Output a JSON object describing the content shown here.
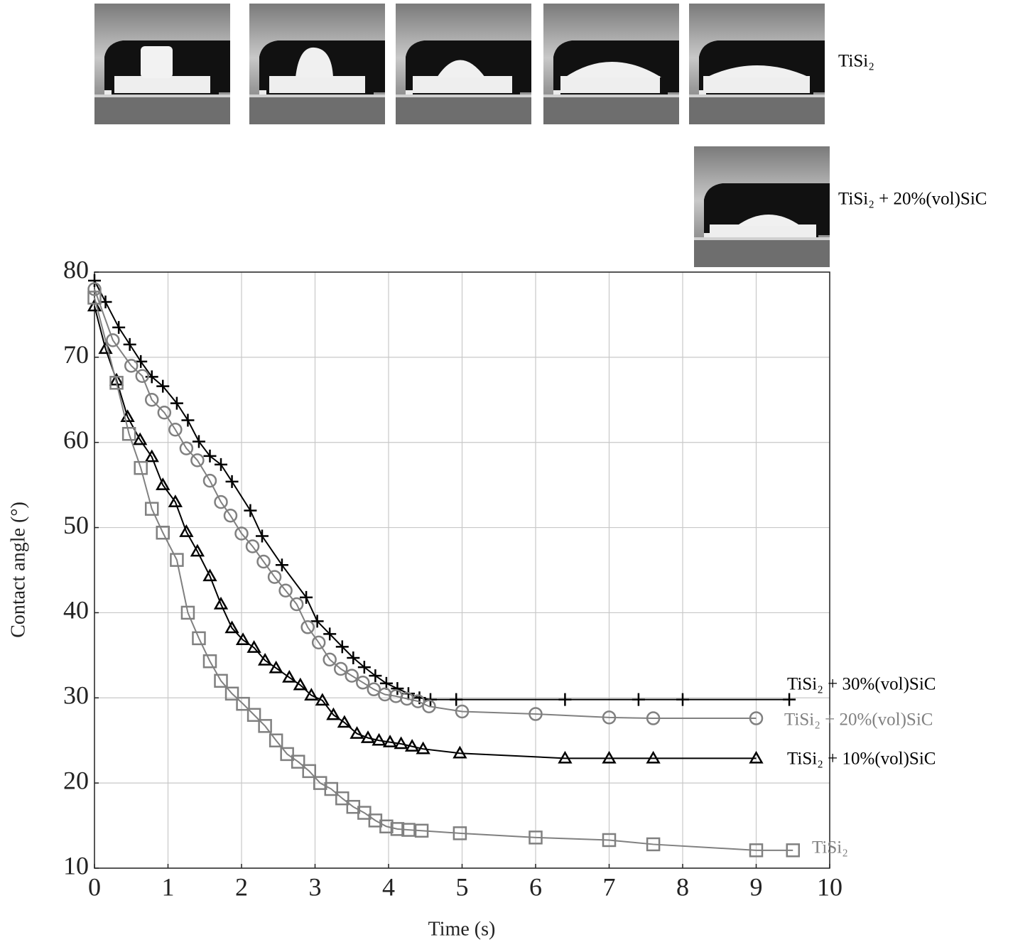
{
  "chart_data": {
    "type": "line",
    "xlabel": "Time (s)",
    "ylabel": "Contact angle (°)",
    "xlim": [
      0,
      10
    ],
    "ylim": [
      10,
      80
    ],
    "xticks": [
      0,
      1,
      2,
      3,
      4,
      5,
      6,
      7,
      8,
      9,
      10
    ],
    "yticks": [
      10,
      20,
      30,
      40,
      50,
      60,
      70,
      80
    ],
    "grid": true,
    "photo_labels": [
      "TiSi₂",
      "TiSi₂ + 20%(vol)SiC"
    ],
    "series": [
      {
        "name": "TiSi₂ + 30%(vol)SiC",
        "color": "#000000",
        "marker": "plus",
        "x": [
          0,
          0.15,
          0.33,
          0.48,
          0.63,
          0.78,
          0.93,
          1.12,
          1.27,
          1.42,
          1.57,
          1.72,
          1.87,
          2.12,
          2.28,
          2.55,
          2.88,
          3.03,
          3.2,
          3.37,
          3.52,
          3.67,
          3.82,
          3.97,
          4.12,
          4.27,
          4.42,
          4.57,
          4.92,
          6.4,
          7.4,
          8,
          9.45
        ],
        "values": [
          79,
          76.5,
          73.5,
          71.5,
          69.5,
          67.7,
          66.6,
          64.6,
          62.6,
          60.1,
          58.4,
          57.4,
          55.4,
          52,
          49,
          45.6,
          41.8,
          39,
          37.5,
          36,
          34.7,
          33.6,
          32.6,
          31.7,
          31.1,
          30.5,
          30,
          29.8,
          29.8,
          29.8,
          29.8,
          29.8,
          29.8
        ]
      },
      {
        "name": "TiSi₂ + 20%(vol)SiC",
        "color": "#808080",
        "marker": "circle",
        "x": [
          0,
          0.25,
          0.5,
          0.65,
          0.78,
          0.95,
          1.1,
          1.25,
          1.4,
          1.57,
          1.72,
          1.85,
          2,
          2.15,
          2.3,
          2.45,
          2.6,
          2.75,
          2.9,
          3.05,
          3.2,
          3.35,
          3.5,
          3.65,
          3.8,
          3.95,
          4.1,
          4.25,
          4.4,
          4.55,
          5,
          6,
          7,
          7.6,
          9
        ],
        "values": [
          78,
          72,
          69,
          67.8,
          65,
          63.5,
          61.5,
          59.3,
          57.9,
          55.5,
          53,
          51.4,
          49.3,
          47.8,
          46,
          44.2,
          42.6,
          41,
          38.3,
          36.5,
          34.5,
          33.4,
          32.6,
          31.8,
          31,
          30.4,
          30.2,
          29.9,
          29.6,
          29,
          28.4,
          28.1,
          27.7,
          27.6,
          27.6
        ]
      },
      {
        "name": "TiSi₂ + 10%(vol)SiC",
        "color": "#000000",
        "marker": "triangle",
        "x": [
          0,
          0.15,
          0.3,
          0.45,
          0.62,
          0.78,
          0.93,
          1.1,
          1.25,
          1.4,
          1.57,
          1.72,
          1.87,
          2.02,
          2.17,
          2.32,
          2.47,
          2.65,
          2.8,
          2.95,
          3.1,
          3.25,
          3.4,
          3.57,
          3.72,
          3.87,
          4.02,
          4.17,
          4.32,
          4.47,
          4.97,
          6.4,
          7,
          7.6,
          9
        ],
        "values": [
          76,
          71,
          67.3,
          63,
          60.3,
          58.3,
          55,
          53,
          49.5,
          47.2,
          44.3,
          41,
          38.2,
          36.8,
          35.9,
          34.4,
          33.5,
          32.4,
          31.5,
          30.3,
          29.7,
          28,
          27.1,
          25.8,
          25.3,
          25,
          24.8,
          24.6,
          24.3,
          24,
          23.5,
          22.9,
          22.9,
          22.9,
          22.9
        ]
      },
      {
        "name": "TiSi₂",
        "color": "#808080",
        "marker": "square",
        "x": [
          0,
          0.3,
          0.47,
          0.63,
          0.78,
          0.93,
          1.12,
          1.27,
          1.42,
          1.57,
          1.72,
          1.87,
          2.02,
          2.17,
          2.32,
          2.47,
          2.62,
          2.77,
          2.92,
          3.07,
          3.22,
          3.37,
          3.52,
          3.67,
          3.82,
          3.97,
          4.12,
          4.27,
          4.45,
          4.97,
          6,
          7,
          7.6,
          9,
          9.5
        ],
        "values": [
          77,
          67,
          61,
          57,
          52.2,
          49.4,
          46.2,
          40,
          37,
          34.3,
          32,
          30.5,
          29.3,
          28,
          26.7,
          25,
          23.4,
          22.5,
          21.4,
          20,
          19.3,
          18.2,
          17.2,
          16.5,
          15.6,
          14.9,
          14.6,
          14.5,
          14.4,
          14.1,
          13.6,
          13.3,
          12.8,
          12.1,
          12.1
        ]
      }
    ]
  }
}
